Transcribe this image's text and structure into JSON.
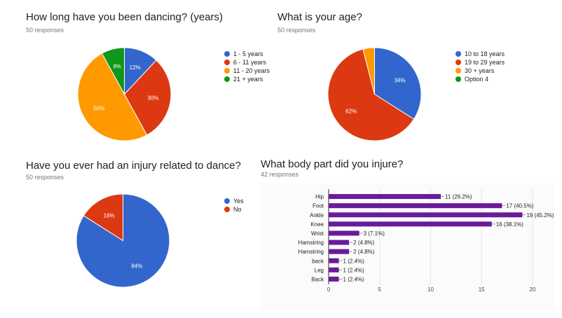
{
  "chart_data": [
    {
      "type": "pie",
      "title": "How long have you been dancing? (years)",
      "subtitle": "50 responses",
      "categories": [
        "1 - 5 years",
        "6 - 11 years",
        "11 - 20 years",
        "21 + years"
      ],
      "values": [
        12,
        30,
        50,
        8
      ],
      "value_labels": [
        "12%",
        "30%",
        "50%",
        "8%"
      ],
      "colors": [
        "#3366cc",
        "#dc3912",
        "#ff9900",
        "#109618"
      ],
      "legend_position": "right"
    },
    {
      "type": "pie",
      "title": "What is your age?",
      "subtitle": "50 responses",
      "categories": [
        "10 to 18 years",
        "19 to 29 years",
        "30 + years",
        "Option 4"
      ],
      "values": [
        34,
        62,
        4,
        0
      ],
      "value_labels": [
        "34%",
        "62%",
        "",
        ""
      ],
      "colors": [
        "#3366cc",
        "#dc3912",
        "#ff9900",
        "#109618"
      ],
      "legend_position": "right"
    },
    {
      "type": "pie",
      "title": "Have you ever had an injury related to dance?",
      "subtitle": "50 responses",
      "categories": [
        "Yes",
        "No"
      ],
      "values": [
        84,
        16
      ],
      "value_labels": [
        "84%",
        "16%"
      ],
      "colors": [
        "#3366cc",
        "#dc3912"
      ],
      "legend_position": "right"
    },
    {
      "type": "bar",
      "orientation": "horizontal",
      "title": "What body part did you injure?",
      "subtitle": "42 responses",
      "categories": [
        "Hip",
        "Foot",
        "Ankle",
        "Knee",
        "Wrist",
        "Hamstring",
        "Hamstring",
        "back",
        "Leg",
        "Back"
      ],
      "values": [
        11,
        17,
        19,
        16,
        3,
        2,
        2,
        1,
        1,
        1
      ],
      "value_labels": [
        "11 (26.2%)",
        "17 (40.5%)",
        "19 (45.2%)",
        "16 (38.1%)",
        "3 (7.1%)",
        "2 (4.8%)",
        "2 (4.8%)",
        "1 (2.4%)",
        "1 (2.4%)",
        "1 (2.4%)"
      ],
      "color": "#6a1b9a",
      "xlim": [
        0,
        20
      ],
      "xticks": [
        0,
        5,
        10,
        15,
        20
      ],
      "grid": true
    }
  ]
}
